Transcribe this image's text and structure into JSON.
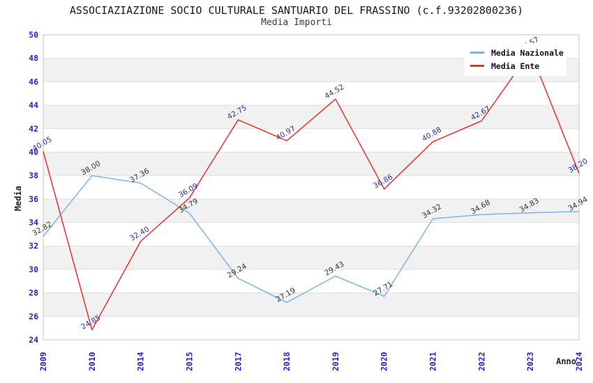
{
  "header": {
    "title": "ASSOCIAZIAZIONE SOCIO CULTURALE SANTUARIO DEL FRASSINO (c.f.93202800236)",
    "subtitle": "Media Importi"
  },
  "chart_data": {
    "type": "line",
    "title": "ASSOCIAZIAZIONE SOCIO CULTURALE SANTUARIO DEL FRASSINO (c.f.93202800236)",
    "subtitle": "Media Importi",
    "xlabel": "Anno",
    "ylabel": "Media",
    "categories": [
      "2009",
      "2010",
      "2014",
      "2015",
      "2017",
      "2018",
      "2019",
      "2020",
      "2021",
      "2022",
      "2023",
      "2024"
    ],
    "series": [
      {
        "name": "Media Nazionale",
        "color": "#7eb3e7",
        "label_color": "#333333",
        "values": [
          32.82,
          38.0,
          37.36,
          34.79,
          29.24,
          27.19,
          29.43,
          27.71,
          34.32,
          34.68,
          34.83,
          34.94
        ]
      },
      {
        "name": "Media Ente",
        "color": "#e83030",
        "label_color": "#2e2e9e",
        "values": [
          40.05,
          24.85,
          32.4,
          36.09,
          42.75,
          40.97,
          44.52,
          36.86,
          40.88,
          42.67,
          48.57,
          38.2
        ]
      }
    ],
    "ylim": [
      24,
      50
    ],
    "ytick_step": 2,
    "grid": "horizontal-bands",
    "legend_position": "top-right",
    "tick_color": "#2424cc",
    "band_color": "#f1f1f1",
    "gridline_color": "#e0e0e0",
    "frame_color": "#c6c6c6",
    "axis_title_color": "#222222"
  }
}
